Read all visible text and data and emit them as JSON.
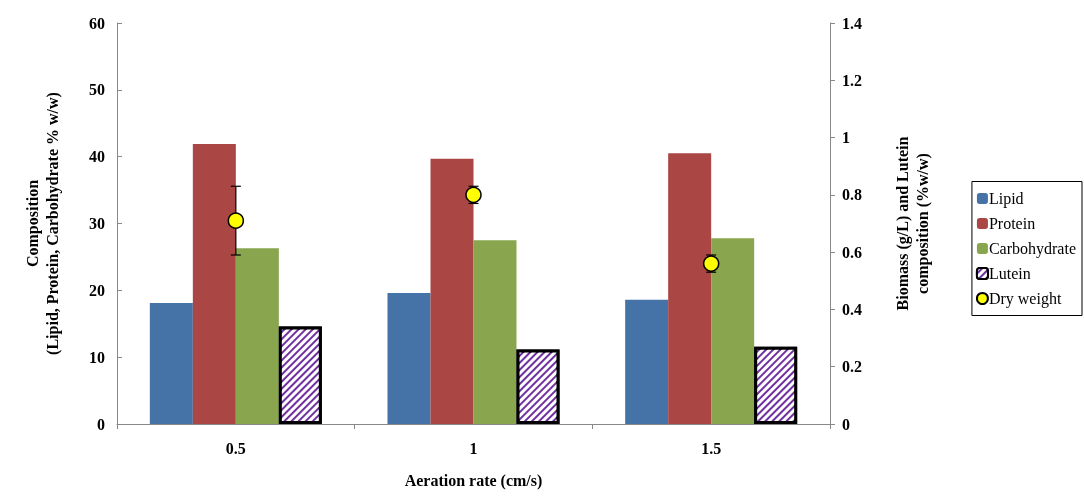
{
  "chart_data": {
    "type": "bar",
    "xlabel": "Aeration rate (cm/s)",
    "ylabel": "Composition\n(Lipid, Protein, Carbohydrate % w/w)",
    "y2label": "Biomass (g/L) and Lutein\ncomposition (%w/w)",
    "categories": [
      "0.5",
      "1",
      "1.5"
    ],
    "series": [
      {
        "name": "Lipid",
        "color": "#4572a7",
        "values": [
          18.1,
          19.6,
          18.6
        ]
      },
      {
        "name": "Protein",
        "color": "#aa4643",
        "values": [
          41.9,
          39.7,
          40.5
        ]
      },
      {
        "name": "Carbohydrate",
        "color": "#89a54e",
        "values": [
          26.3,
          27.5,
          27.8
        ]
      },
      {
        "name": "Lutein",
        "color": "#7030a0",
        "axis": "y2",
        "values": [
          0.34,
          0.26,
          0.27
        ]
      },
      {
        "name": "Dry weight",
        "type": "scatter",
        "color": "#ffff00",
        "axis": "y2",
        "x": [
          "0.5",
          "1",
          "1.5"
        ],
        "values": [
          0.71,
          0.8,
          0.56
        ],
        "errors": [
          0.12,
          0.03,
          0.03
        ]
      }
    ],
    "ylim": [
      0,
      60
    ],
    "yticks": [
      0,
      10,
      20,
      30,
      40,
      50,
      60
    ],
    "y2lim": [
      0,
      1.4
    ],
    "y2ticks": [
      0,
      0.2,
      0.4,
      0.6,
      0.8,
      1,
      1.2,
      1.4
    ],
    "grid": false,
    "legend": "right",
    "marker": "circle"
  }
}
